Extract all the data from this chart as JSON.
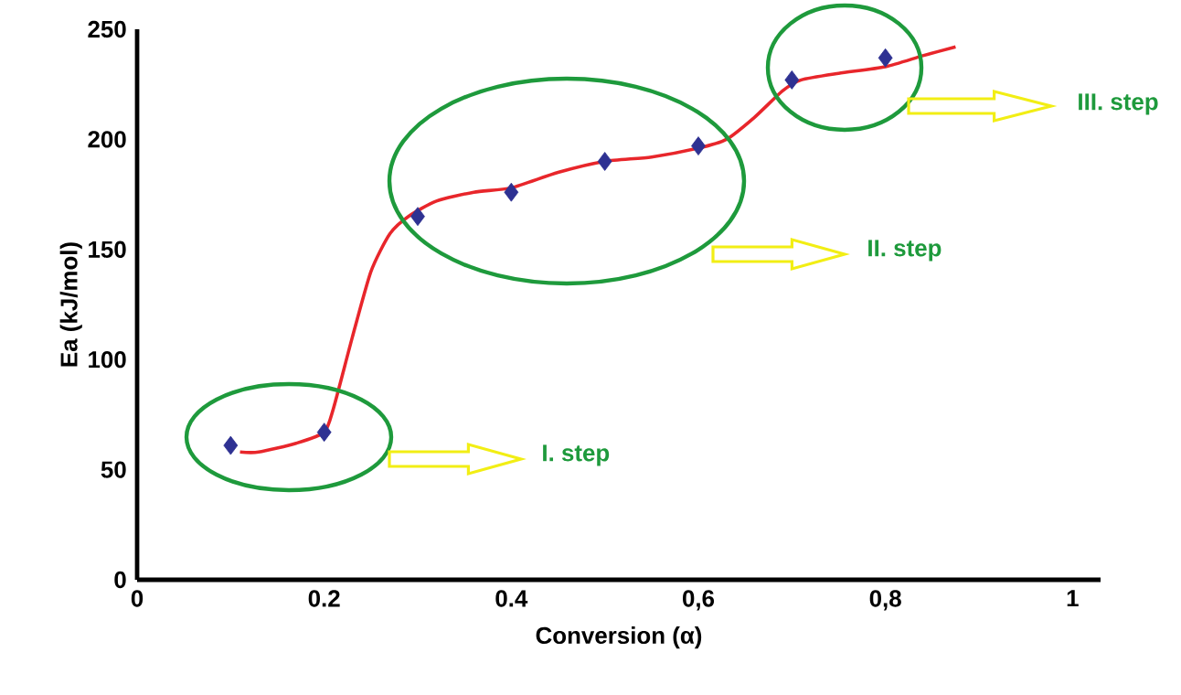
{
  "chart_data": {
    "type": "scatter",
    "xlabel": "Conversion (α)",
    "ylabel": "Ea (kJ/mol)",
    "xlim": [
      0,
      1.03
    ],
    "ylim": [
      0,
      250
    ],
    "xticks": [
      0,
      0.2,
      {
        "value": 0.4,
        "label": "0.4"
      },
      {
        "value": 0.6,
        "label": "0,6"
      },
      {
        "value": 0.8,
        "label": "0,8"
      },
      1
    ],
    "yticks": [
      0,
      50,
      100,
      150,
      200,
      250
    ],
    "grid": false,
    "series": [
      {
        "type": "line",
        "color": "#e8262b",
        "line_style": "solid",
        "marker": "none",
        "x": [
          0.11,
          0.13,
          0.17,
          0.2,
          0.21,
          0.23,
          0.25,
          0.27,
          0.29,
          0.32,
          0.36,
          0.4,
          0.45,
          0.5,
          0.55,
          0.6,
          0.63,
          0.66,
          0.69,
          0.71,
          0.75,
          0.8,
          0.84,
          0.875
        ],
        "values": [
          58,
          58,
          62,
          67,
          78,
          110,
          140,
          157,
          165,
          172,
          176,
          178,
          185,
          190,
          192,
          196,
          200,
          210,
          222,
          227,
          230,
          233,
          238,
          242
        ]
      },
      {
        "color": "#2e3192",
        "marker": "diamond",
        "x": [
          0.1,
          0.2,
          0.3,
          0.4,
          0.5,
          0.6,
          0.7,
          0.8
        ],
        "values": [
          61,
          67,
          165,
          176,
          190,
          197,
          227,
          237
        ]
      }
    ],
    "annotations": [
      "I. step",
      "II. step",
      "III. step"
    ]
  }
}
